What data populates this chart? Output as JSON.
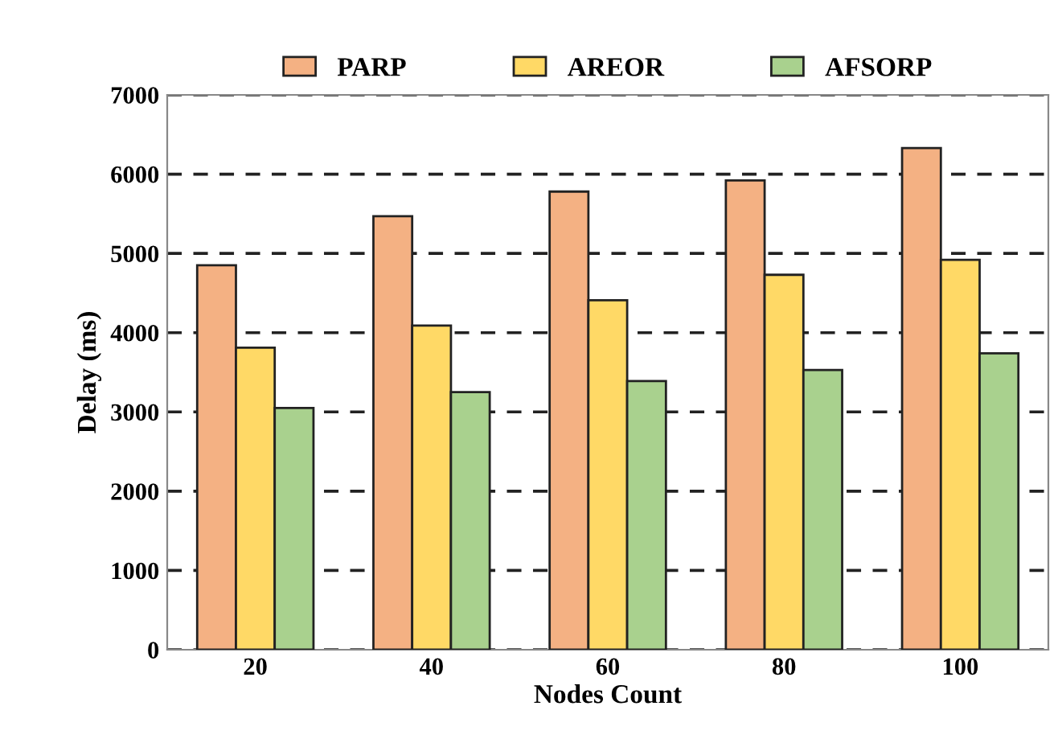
{
  "chart_data": {
    "type": "bar",
    "xlabel": "Nodes Count",
    "ylabel": "Delay (ms)",
    "categories": [
      "20",
      "40",
      "60",
      "80",
      "100"
    ],
    "series": [
      {
        "name": "PARP",
        "color": "#f4b183",
        "values": [
          4850,
          5470,
          5780,
          5920,
          6330
        ]
      },
      {
        "name": "AREOR",
        "color": "#ffd966",
        "values": [
          3810,
          4090,
          4410,
          4730,
          4920
        ]
      },
      {
        "name": "AFSORP",
        "color": "#a9d18e",
        "values": [
          3050,
          3250,
          3390,
          3530,
          3740
        ]
      }
    ],
    "ylim": [
      0,
      7000
    ],
    "yticks": [
      0,
      1000,
      2000,
      3000,
      4000,
      5000,
      6000,
      7000
    ],
    "grid": "y",
    "legend": "top"
  }
}
